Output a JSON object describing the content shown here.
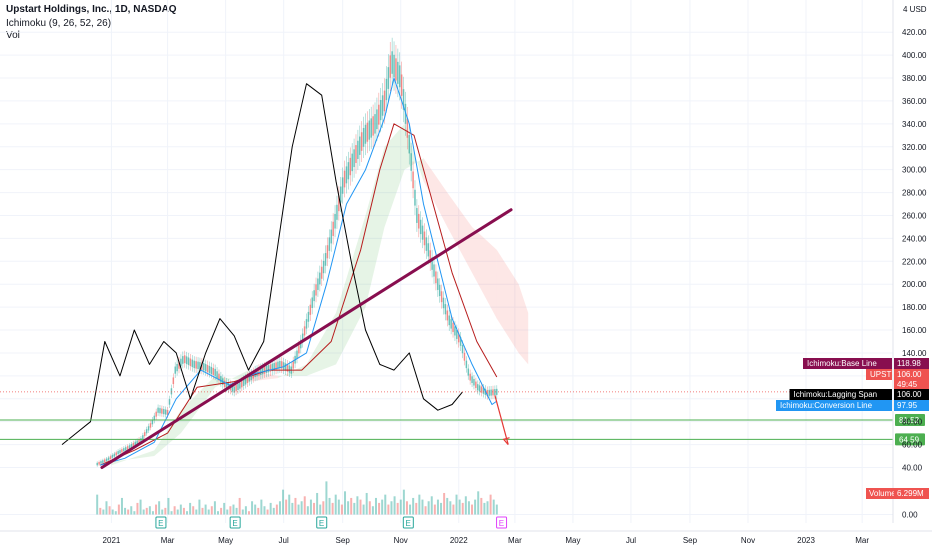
{
  "header": {
    "symbol_line": "Upstart Holdings, Inc., 1D, NASDAQ",
    "indicator_1": "Ichimoku (9, 26, 52, 26)",
    "indicator_2": "Vol"
  },
  "chart_data": {
    "type": "line",
    "currency_badge": "4 USD",
    "xlabel": "",
    "ylabel": "",
    "y_ticks": [
      0,
      40,
      60,
      80,
      100,
      120,
      140,
      160,
      180,
      200,
      220,
      240,
      260,
      280,
      300,
      320,
      340,
      360,
      380,
      400,
      420
    ],
    "y_tick_labels": [
      "0.00",
      "40.00",
      "60.00",
      "80.00",
      "100.00",
      "120.00",
      "140.00",
      "160.00",
      "180.00",
      "200.00",
      "220.00",
      "240.00",
      "260.00",
      "280.00",
      "300.00",
      "320.00",
      "340.00",
      "360.00",
      "380.00",
      "400.00",
      "420.00"
    ],
    "x_ticks": [
      "2021-01-01",
      "2021-03-01",
      "2021-05-01",
      "2021-07-01",
      "2021-09-01",
      "2021-11-01",
      "2022-01-01",
      "2022-03-01",
      "2022-05-01",
      "2022-07-01",
      "2022-09-01",
      "2022-11-01",
      "2023-01-01",
      "2023-03-01"
    ],
    "x_tick_labels": [
      "2021",
      "Mar",
      "May",
      "Jul",
      "Sep",
      "Nov",
      "2022",
      "Mar",
      "May",
      "Jul",
      "Sep",
      "Nov",
      "2023",
      "Mar"
    ],
    "x_range": [
      "2020-10-20",
      "2023-03-25"
    ],
    "price_series": {
      "name": "UPST",
      "x": [
        "2020-12-17",
        "2020-12-28",
        "2021-01-08",
        "2021-01-20",
        "2021-02-01",
        "2021-02-12",
        "2021-02-19",
        "2021-03-01",
        "2021-03-09",
        "2021-03-18",
        "2021-03-29",
        "2021-04-08",
        "2021-04-20",
        "2021-04-30",
        "2021-05-10",
        "2021-05-20",
        "2021-06-01",
        "2021-06-14",
        "2021-06-28",
        "2021-07-09",
        "2021-07-20",
        "2021-08-02",
        "2021-08-12",
        "2021-08-24",
        "2021-09-02",
        "2021-09-13",
        "2021-09-24",
        "2021-10-05",
        "2021-10-15",
        "2021-10-22",
        "2021-11-01",
        "2021-11-09",
        "2021-11-18",
        "2021-11-30",
        "2021-12-10",
        "2021-12-21",
        "2022-01-03",
        "2022-01-12",
        "2022-01-21",
        "2022-01-31",
        "2022-02-10"
      ],
      "values": [
        43,
        47,
        53,
        58,
        64,
        78,
        90,
        88,
        125,
        135,
        130,
        128,
        123,
        113,
        108,
        114,
        122,
        126,
        130,
        125,
        150,
        190,
        215,
        255,
        290,
        310,
        330,
        340,
        360,
        395,
        380,
        330,
        260,
        230,
        200,
        170,
        150,
        120,
        110,
        105,
        106
      ]
    },
    "conversion_line": {
      "name": "Ichimoku:Conversion Line",
      "x": [
        "2020-12-20",
        "2021-01-15",
        "2021-02-15",
        "2021-03-10",
        "2021-04-05",
        "2021-05-05",
        "2021-06-01",
        "2021-07-01",
        "2021-07-25",
        "2021-08-15",
        "2021-09-05",
        "2021-09-25",
        "2021-10-15",
        "2021-10-25",
        "2021-11-10",
        "2021-11-25",
        "2021-12-10",
        "2021-12-25",
        "2022-01-15",
        "2022-02-05",
        "2022-02-10"
      ],
      "values": [
        42,
        48,
        62,
        100,
        125,
        112,
        122,
        128,
        140,
        200,
        270,
        300,
        345,
        380,
        340,
        270,
        220,
        170,
        130,
        95,
        97.95
      ]
    },
    "base_line": {
      "name": "Ichimoku:Base Line",
      "x": [
        "2020-12-20",
        "2021-01-25",
        "2021-03-01",
        "2021-04-01",
        "2021-05-10",
        "2021-06-15",
        "2021-07-20",
        "2021-08-20",
        "2021-09-20",
        "2021-10-10",
        "2021-10-25",
        "2021-11-15",
        "2021-12-05",
        "2021-12-25",
        "2022-01-20",
        "2022-02-10"
      ],
      "values": [
        42,
        55,
        70,
        110,
        115,
        125,
        125,
        150,
        230,
        300,
        340,
        330,
        270,
        210,
        150,
        118.98
      ]
    },
    "lagging_span": {
      "name": "Ichimoku:Lagging Span",
      "x": [
        "2020-11-10",
        "2020-11-25",
        "2020-12-10",
        "2020-12-25",
        "2021-01-10",
        "2021-01-25",
        "2021-02-10",
        "2021-02-25",
        "2021-03-10",
        "2021-03-25",
        "2021-04-10",
        "2021-04-25",
        "2021-05-10",
        "2021-05-25",
        "2021-06-10",
        "2021-06-25",
        "2021-07-10",
        "2021-07-25",
        "2021-08-10",
        "2021-08-25",
        "2021-09-10",
        "2021-09-25",
        "2021-10-10",
        "2021-10-25",
        "2021-11-10",
        "2021-11-25",
        "2021-12-10",
        "2021-12-25",
        "2022-01-05"
      ],
      "values": [
        60,
        70,
        80,
        150,
        120,
        160,
        130,
        150,
        140,
        100,
        140,
        170,
        155,
        125,
        150,
        235,
        320,
        375,
        365,
        290,
        220,
        160,
        130,
        125,
        140,
        100,
        90,
        95,
        106
      ]
    },
    "cloud": {
      "x": [
        "2021-01-01",
        "2021-02-15",
        "2021-03-15",
        "2021-04-20",
        "2021-05-25",
        "2021-06-25",
        "2021-07-25",
        "2021-08-25",
        "2021-09-25",
        "2021-10-15",
        "2021-11-05",
        "2021-11-25",
        "2021-12-20",
        "2022-01-15",
        "2022-02-10",
        "2022-03-05",
        "2022-03-15"
      ],
      "span_a": [
        42,
        55,
        90,
        120,
        115,
        118,
        130,
        175,
        260,
        320,
        340,
        290,
        250,
        210,
        170,
        140,
        130
      ],
      "span_b": [
        45,
        50,
        70,
        110,
        125,
        120,
        120,
        130,
        180,
        250,
        300,
        310,
        280,
        250,
        230,
        200,
        175
      ]
    },
    "trendlines": [
      {
        "name": "rising trendline",
        "x": [
          "2020-12-22",
          "2022-02-25"
        ],
        "values": [
          40,
          265
        ]
      },
      {
        "name": "projection arrow",
        "x": [
          "2022-02-08",
          "2022-02-22"
        ],
        "values": [
          103,
          60
        ]
      }
    ],
    "horizontal_levels": [
      {
        "value": 81.52,
        "label": "81.52",
        "color": "#4caf50"
      },
      {
        "value": 64.59,
        "label": "64.59",
        "color": "#4caf50"
      }
    ],
    "volume": {
      "label": "Volume",
      "last_value": "6.299M",
      "x_start": "2020-12-17",
      "x_end": "2022-02-10",
      "axis_max_millions": 45,
      "values_millions": [
        12,
        4,
        3,
        8,
        5,
        3,
        2,
        6,
        10,
        4,
        3,
        5,
        2,
        7,
        9,
        3,
        4,
        5,
        2,
        6,
        8,
        3,
        4,
        10,
        2,
        5,
        3,
        6,
        4,
        2,
        7,
        5,
        3,
        9,
        4,
        6,
        3,
        5,
        8,
        2,
        4,
        7,
        3,
        5,
        6,
        4,
        10,
        3,
        5,
        2,
        8,
        6,
        4,
        9,
        5,
        3,
        7,
        4,
        6,
        8,
        15,
        9,
        12,
        7,
        10,
        6,
        8,
        11,
        5,
        9,
        7,
        13,
        6,
        8,
        20,
        10,
        7,
        12,
        9,
        6,
        14,
        8,
        10,
        7,
        11,
        9,
        6,
        13,
        8,
        5,
        10,
        7,
        9,
        12,
        6,
        8,
        11,
        7,
        9,
        15,
        8,
        6,
        10,
        7,
        12,
        9,
        5,
        8,
        11,
        6,
        9,
        7,
        13,
        10,
        8,
        6,
        12,
        9,
        7,
        11,
        8,
        6,
        9,
        14,
        10,
        7,
        8,
        12,
        9,
        6
      ],
      "up_color": "#26a69a",
      "down_color": "#ef5350"
    },
    "earnings_markers": {
      "label": "E",
      "past_dates": [
        "2021-02-22",
        "2021-05-11",
        "2021-08-10",
        "2021-11-09"
      ],
      "upcoming_date": "2022-02-15"
    },
    "price_labels": [
      {
        "name": "Ichimoku:Base Line",
        "value": "118.98",
        "color": "#880e4f",
        "y": 118.98
      },
      {
        "name": "UPST",
        "value": "106.00",
        "sub": "49:45",
        "color": "#ef5350",
        "y": 110
      },
      {
        "name": "Ichimoku:Lagging Span",
        "value": "106.00",
        "color": "#000000",
        "y": 106
      },
      {
        "name": "Ichimoku:Conversion Line",
        "value": "97.95",
        "color": "#2196f3",
        "y": 97.95
      }
    ],
    "colors": {
      "price": "#131722",
      "candle_up": "#26a69a",
      "candle_down": "#ef5350",
      "conversion": "#2196f3",
      "base": "#b71c1c",
      "cloud_up": "#4caf50",
      "cloud_down": "#ef5350",
      "trendline": "#880e4f",
      "arrow": "#e53935",
      "earnings_past": "#26a69a",
      "earnings_upcoming": "#e040fb"
    }
  }
}
